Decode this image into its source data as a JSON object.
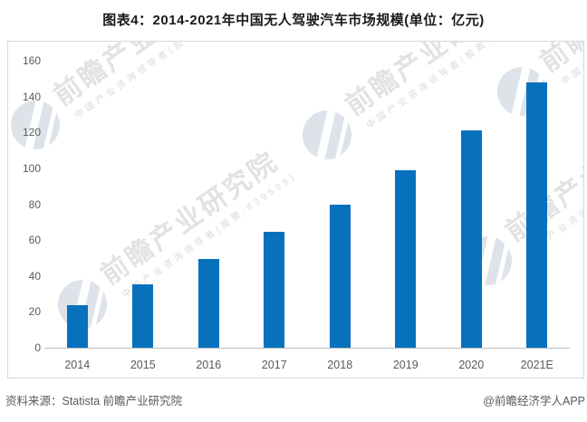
{
  "title": "图表4：2014-2021年中国无人驾驶汽车市场规模(单位：亿元)",
  "chart_data": {
    "type": "bar",
    "title": "图表4：2014-2021年中国无人驾驶汽车市场规模(单位：亿元)",
    "categories": [
      "2014",
      "2015",
      "2016",
      "2017",
      "2018",
      "2019",
      "2020",
      "2021E"
    ],
    "values": [
      23.5,
      35.5,
      49.5,
      64.5,
      80,
      99,
      121,
      148
    ],
    "xlabel": "",
    "ylabel": "",
    "unit": "亿元",
    "ylim": [
      0,
      160
    ],
    "yticks": [
      0,
      20,
      40,
      60,
      80,
      100,
      120,
      140,
      160
    ],
    "grid": false,
    "legend": false,
    "bar_color": "#0771be"
  },
  "watermark": {
    "brand_text": "前瞻产业研究院",
    "sub_text": "中国产业咨询领导者(股票:839599)"
  },
  "footer": {
    "source_label": "资料来源：Statista 前瞻产业研究院",
    "credit_label": "@前瞻经济学人APP"
  },
  "colors": {
    "bar": "#0771be",
    "axis_line": "#bfbfbf",
    "tick_text": "#595959",
    "border": "#d9d9d9"
  }
}
